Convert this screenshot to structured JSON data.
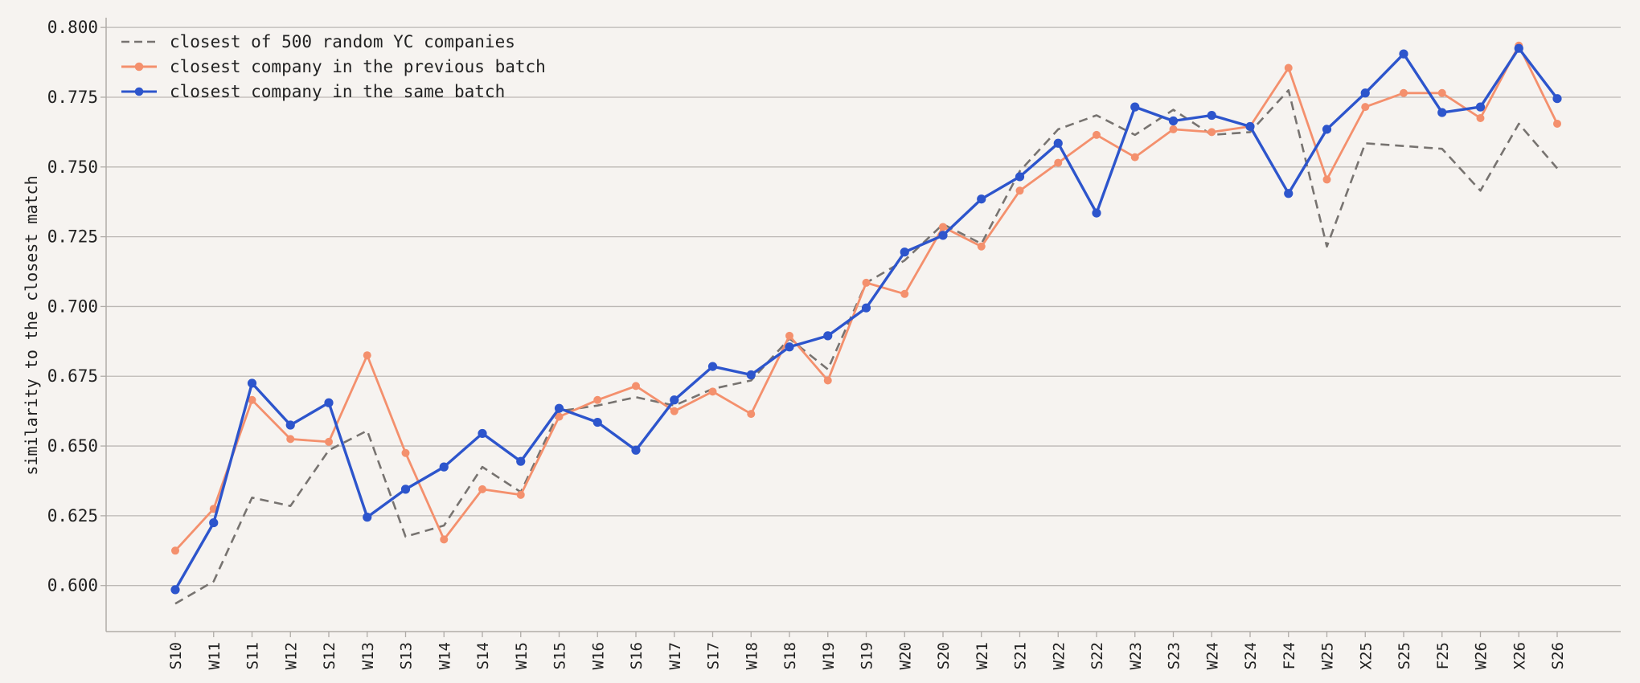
{
  "chart_data": {
    "type": "line",
    "title": "",
    "xlabel": "",
    "ylabel": "similarity to the closest match",
    "ylim": [
      0.5835,
      0.8035
    ],
    "yticks": [
      0.6,
      0.625,
      0.65,
      0.675,
      0.7,
      0.725,
      0.75,
      0.775,
      0.8
    ],
    "ytick_labels": [
      "0.600",
      "0.625",
      "0.650",
      "0.675",
      "0.700",
      "0.725",
      "0.750",
      "0.775",
      "0.800"
    ],
    "grid": "horizontal",
    "legend_position": "top-left",
    "categories": [
      "S10",
      "W11",
      "S11",
      "W12",
      "S12",
      "W13",
      "S13",
      "W14",
      "S14",
      "W15",
      "S15",
      "W16",
      "S16",
      "W17",
      "S17",
      "W18",
      "S18",
      "W19",
      "S19",
      "W20",
      "S20",
      "W21",
      "S21",
      "W22",
      "S22",
      "W23",
      "S23",
      "W24",
      "S24",
      "F24",
      "W25",
      "X25",
      "S25",
      "F25",
      "W26",
      "X26",
      "S26"
    ],
    "series": [
      {
        "name": "closest of 500 random YC companies",
        "style": "dashed",
        "markers": false,
        "color": "#777370",
        "values": [
          0.5935,
          0.6015,
          0.6315,
          0.6285,
          0.6485,
          0.6555,
          0.6175,
          0.6215,
          0.6425,
          0.6335,
          0.6625,
          0.6645,
          0.6675,
          0.6645,
          0.6705,
          0.6735,
          0.6885,
          0.6775,
          0.7085,
          0.7165,
          0.7295,
          0.7225,
          0.7485,
          0.7635,
          0.7685,
          0.7615,
          0.7705,
          0.7615,
          0.7625,
          0.7775,
          0.7215,
          0.7585,
          0.7575,
          0.7565,
          0.7415,
          0.7655,
          0.7495
        ]
      },
      {
        "name": "closest company in the previous batch",
        "style": "solid",
        "markers": true,
        "color": "#f4906d",
        "values": [
          0.6125,
          0.6275,
          0.6665,
          0.6525,
          0.6515,
          0.6825,
          0.6475,
          0.6165,
          0.6345,
          0.6325,
          0.6605,
          0.6665,
          0.6715,
          0.6625,
          0.6695,
          0.6615,
          0.6895,
          0.6735,
          0.7085,
          0.7045,
          0.7285,
          0.7215,
          0.7415,
          0.7515,
          0.7615,
          0.7535,
          0.7635,
          0.7625,
          0.7645,
          0.7855,
          0.7455,
          0.7715,
          0.7765,
          0.7765,
          0.7675,
          0.7935,
          0.7655
        ]
      },
      {
        "name": "closest company in the same batch",
        "style": "solid",
        "markers": true,
        "color": "#2d55cc",
        "values": [
          0.5985,
          0.6225,
          0.6725,
          0.6575,
          0.6655,
          0.6245,
          0.6345,
          0.6425,
          0.6545,
          0.6445,
          0.6635,
          0.6585,
          0.6485,
          0.6665,
          0.6785,
          0.6755,
          0.6855,
          0.6895,
          0.6995,
          0.7195,
          0.7255,
          0.7385,
          0.7465,
          0.7585,
          0.7335,
          0.7715,
          0.7665,
          0.7685,
          0.7645,
          0.7405,
          0.7635,
          0.7765,
          0.7905,
          0.7695,
          0.7715,
          0.7925,
          0.7745
        ]
      }
    ]
  },
  "colors": {
    "background": "#f6f3f0",
    "grid": "#bcb8b5",
    "axis": "#b0aca8",
    "text": "#222222"
  }
}
